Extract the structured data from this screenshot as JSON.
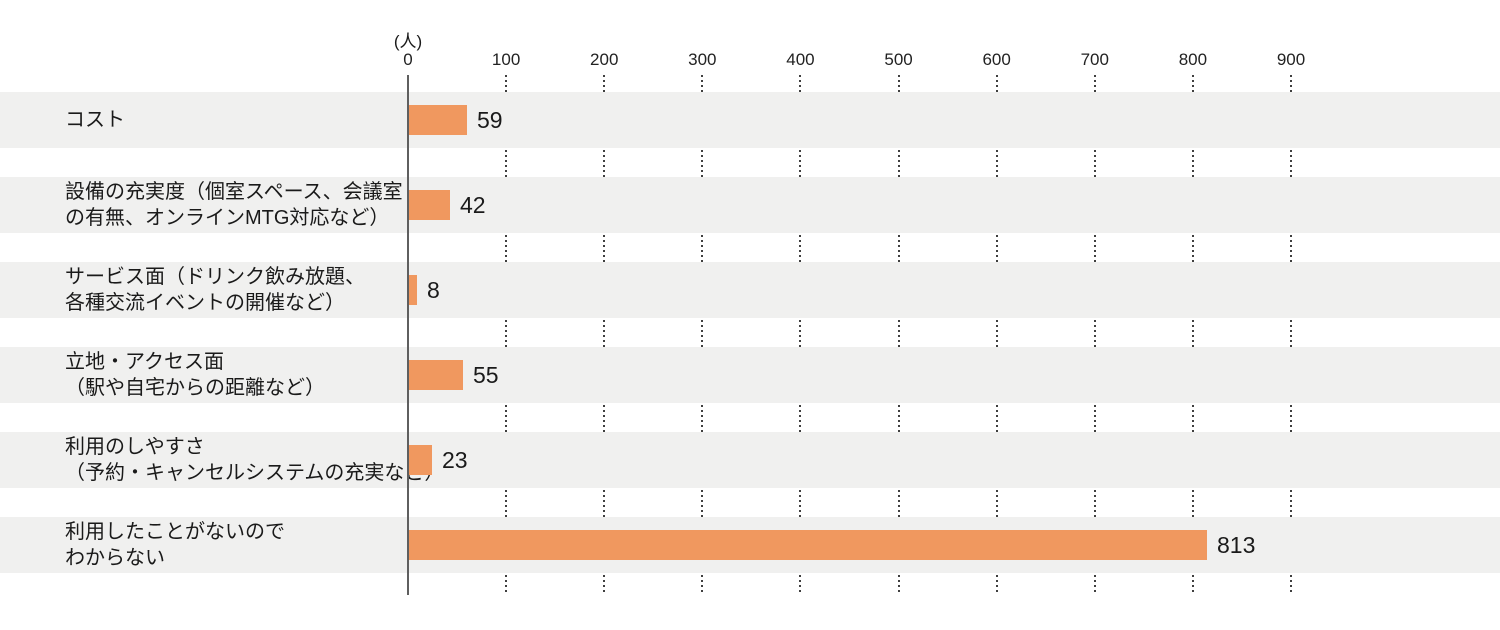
{
  "chart_data": {
    "type": "bar",
    "orientation": "horizontal",
    "title": "",
    "unit_label": "(人)",
    "xlabel": "",
    "ylabel": "",
    "xlim": [
      0,
      900
    ],
    "x_ticks": [
      0,
      100,
      200,
      300,
      400,
      500,
      600,
      700,
      800,
      900
    ],
    "grid": "dotted-vertical-in-gaps",
    "legend": "none",
    "categories": [
      "コスト",
      "設備の充実度（個室スペース、会議室の有無、オンラインMTG対応など）",
      "サービス面（ドリンク飲み放題、各種交流イベントの開催など）",
      "立地・アクセス面（駅や自宅からの距離など）",
      "利用のしやすさ（予約・キャンセルシステムの充実など）",
      "利用したことがないのでわからない"
    ],
    "rows": [
      {
        "label_lines": [
          "コスト"
        ],
        "value": 59
      },
      {
        "label_lines": [
          "設備の充実度（個室スペース、会議室",
          "の有無、オンラインMTG対応など）"
        ],
        "value": 42
      },
      {
        "label_lines": [
          "サービス面（ドリンク飲み放題、",
          "各種交流イベントの開催など）"
        ],
        "value": 8
      },
      {
        "label_lines": [
          "立地・アクセス面",
          "（駅や自宅からの距離など）"
        ],
        "value": 55
      },
      {
        "label_lines": [
          "利用のしやすさ",
          "（予約・キャンセルシステムの充実など）"
        ],
        "value": 23
      },
      {
        "label_lines": [
          "利用したことがないので",
          "わからない"
        ],
        "value": 813
      }
    ],
    "values": [
      59,
      42,
      8,
      55,
      23,
      813
    ],
    "colors": {
      "bar": "#F0985F",
      "band_background": "#F0F0EF",
      "page_background": "#FFFFFF",
      "axis_line": "#5f5f5f",
      "grid_dots": "#3f3f3f",
      "text": "#1A1A1A"
    }
  }
}
